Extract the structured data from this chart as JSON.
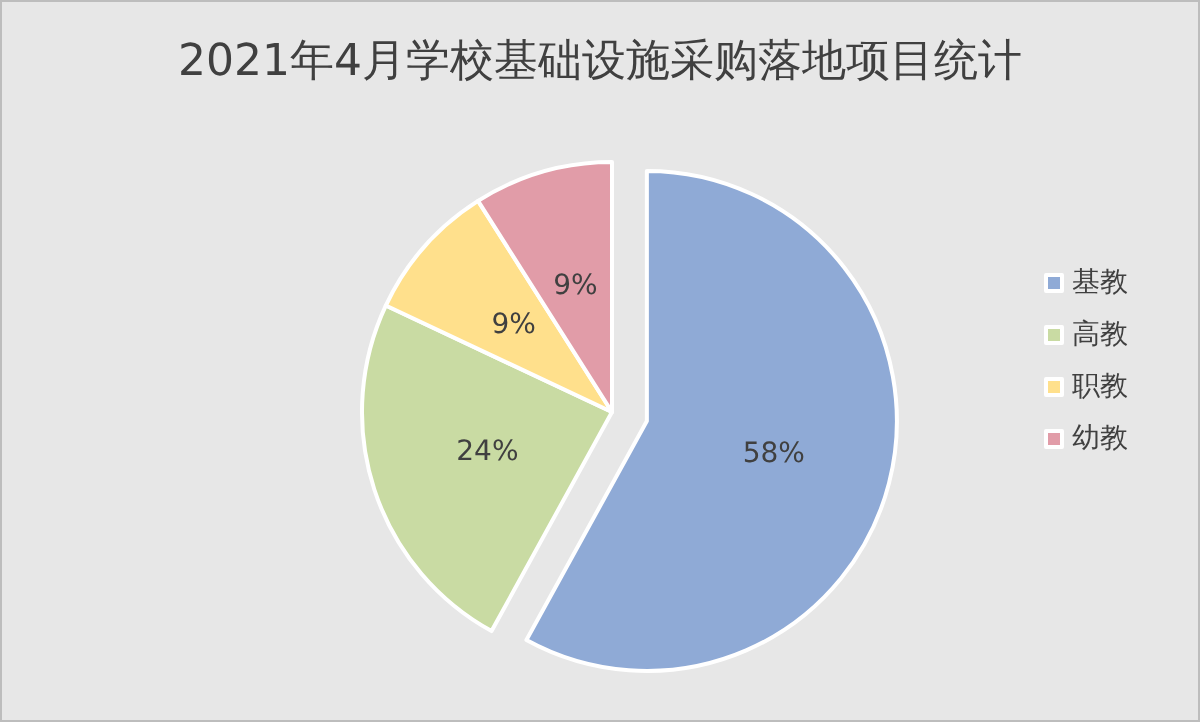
{
  "chart_data": {
    "type": "pie",
    "title": "2021年4月学校基础设施采购落地项目统计",
    "categories": [
      "基教",
      "高教",
      "职教",
      "幼教"
    ],
    "values": [
      58,
      24,
      9,
      9
    ],
    "colors": [
      "#8faad6",
      "#c9dba3",
      "#ffe08c",
      "#e19ca8"
    ],
    "value_labels": [
      "58%",
      "24%",
      "9%",
      "9%"
    ],
    "legend": "right"
  }
}
